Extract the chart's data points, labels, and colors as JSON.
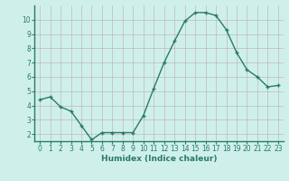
{
  "x": [
    0,
    1,
    2,
    3,
    4,
    5,
    6,
    7,
    8,
    9,
    10,
    11,
    12,
    13,
    14,
    15,
    16,
    17,
    18,
    19,
    20,
    21,
    22,
    23
  ],
  "y": [
    4.4,
    4.6,
    3.9,
    3.6,
    2.6,
    1.6,
    2.1,
    2.1,
    2.1,
    2.1,
    3.3,
    5.2,
    7.0,
    8.5,
    9.9,
    10.5,
    10.5,
    10.3,
    9.3,
    7.7,
    6.5,
    6.0,
    5.3,
    5.4
  ],
  "xlabel": "Humidex (Indice chaleur)",
  "ylim": [
    1.5,
    11.0
  ],
  "xlim": [
    -0.5,
    23.5
  ],
  "yticks": [
    2,
    3,
    4,
    5,
    6,
    7,
    8,
    9,
    10
  ],
  "xticks": [
    0,
    1,
    2,
    3,
    4,
    5,
    6,
    7,
    8,
    9,
    10,
    11,
    12,
    13,
    14,
    15,
    16,
    17,
    18,
    19,
    20,
    21,
    22,
    23
  ],
  "line_color": "#2a7a6a",
  "marker": "+",
  "marker_size": 3,
  "marker_lw": 1.0,
  "line_width": 1.0,
  "background_color": "#cff0ea",
  "grid_color": "#c0b8b8",
  "axes_bg": "#cff0ea",
  "tick_fontsize": 5.5,
  "xlabel_fontsize": 6.5,
  "tick_color": "#2a7a6a",
  "label_color": "#2a7a6a"
}
